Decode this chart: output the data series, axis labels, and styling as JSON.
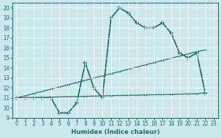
{
  "xlabel": "Humidex (Indice chaleur)",
  "xlim": [
    -0.5,
    23.5
  ],
  "ylim": [
    9,
    20.5
  ],
  "yticks": [
    9,
    10,
    11,
    12,
    13,
    14,
    15,
    16,
    17,
    18,
    19,
    20
  ],
  "xticks": [
    0,
    1,
    2,
    3,
    4,
    5,
    6,
    7,
    8,
    9,
    10,
    11,
    12,
    13,
    14,
    15,
    16,
    17,
    18,
    19,
    20,
    21,
    22,
    23
  ],
  "bg_color": "#cde8ec",
  "line_color": "#1a6b6b",
  "series1_x": [
    0,
    1,
    2,
    3,
    4,
    5,
    6,
    7,
    8,
    9,
    10,
    11,
    12,
    13,
    14,
    15,
    16,
    17,
    18,
    19,
    20,
    21,
    22
  ],
  "series1_y": [
    11,
    11,
    11,
    11,
    11,
    9.5,
    9.5,
    10.5,
    14.5,
    12,
    11,
    19,
    20,
    19.5,
    18.5,
    18,
    18,
    18.5,
    17.5,
    15.5,
    15,
    15.5,
    11.5
  ],
  "series2_x": [
    0,
    1,
    2,
    3,
    4,
    5,
    6,
    7,
    8,
    9,
    10,
    11,
    12,
    13,
    14,
    15,
    16,
    17,
    18,
    19,
    20,
    21,
    22
  ],
  "series2_y": [
    11.0,
    11.22,
    11.44,
    11.66,
    11.88,
    12.1,
    12.32,
    12.54,
    12.76,
    12.98,
    13.2,
    13.42,
    13.64,
    13.86,
    14.08,
    14.3,
    14.52,
    14.74,
    14.96,
    15.18,
    15.4,
    15.62,
    15.8
  ],
  "series3_x": [
    0,
    1,
    2,
    3,
    4,
    5,
    6,
    7,
    8,
    9,
    10,
    11,
    12,
    13,
    14,
    15,
    16,
    17,
    18,
    19,
    20,
    21,
    22
  ],
  "series3_y": [
    11.0,
    11.02,
    11.04,
    11.06,
    11.08,
    11.1,
    11.12,
    11.14,
    11.16,
    11.18,
    11.2,
    11.22,
    11.24,
    11.26,
    11.28,
    11.3,
    11.32,
    11.34,
    11.36,
    11.38,
    11.4,
    11.42,
    11.5
  ]
}
